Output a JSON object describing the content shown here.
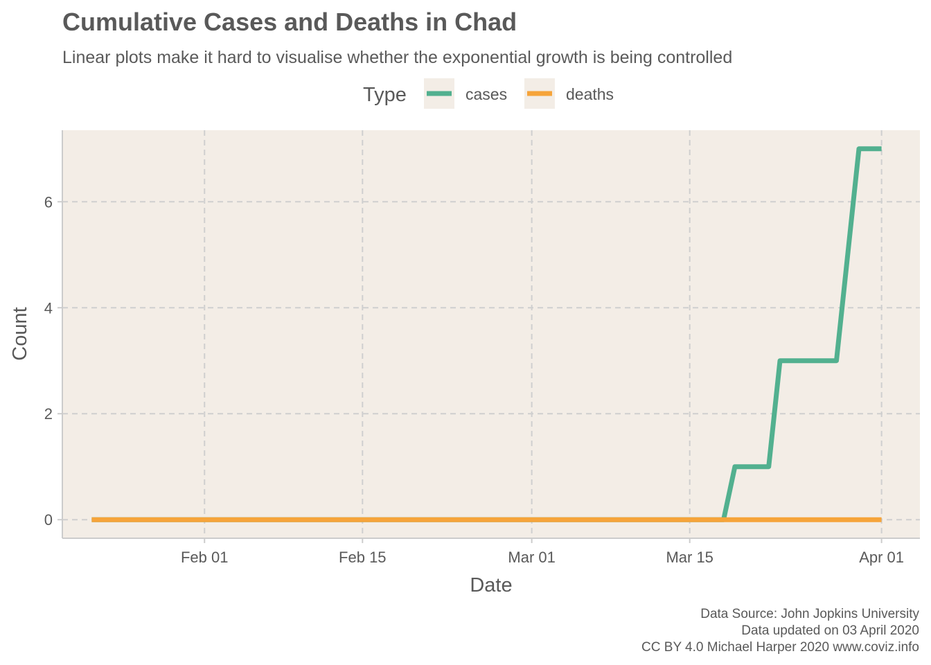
{
  "chart_data": {
    "type": "line",
    "title": "Cumulative Cases and Deaths in Chad",
    "subtitle": "Linear plots make it hard to visualise whether the exponential growth is being controlled",
    "xlabel": "Date",
    "ylabel": "Count",
    "legend": {
      "title": "Type",
      "position": "top-center",
      "entries": [
        "cases",
        "deaths"
      ]
    },
    "x_range": [
      "2020-01-22",
      "2020-04-03"
    ],
    "ylim": [
      -0.35,
      7.35
    ],
    "x_ticks": [
      {
        "date": "2020-02-01",
        "label": "Feb 01"
      },
      {
        "date": "2020-02-15",
        "label": "Feb 15"
      },
      {
        "date": "2020-03-01",
        "label": "Mar 01"
      },
      {
        "date": "2020-03-15",
        "label": "Mar 15"
      },
      {
        "date": "2020-04-01",
        "label": "Apr 01"
      }
    ],
    "y_ticks": [
      0,
      2,
      4,
      6
    ],
    "grid": true,
    "background": "#f3ede6",
    "series": [
      {
        "name": "cases",
        "color": "#52b08f",
        "points": [
          {
            "x": "2020-01-22",
            "y": 0
          },
          {
            "x": "2020-03-18",
            "y": 0
          },
          {
            "x": "2020-03-19",
            "y": 1
          },
          {
            "x": "2020-03-22",
            "y": 1
          },
          {
            "x": "2020-03-23",
            "y": 3
          },
          {
            "x": "2020-03-28",
            "y": 3
          },
          {
            "x": "2020-03-30",
            "y": 7
          },
          {
            "x": "2020-04-01",
            "y": 7
          }
        ]
      },
      {
        "name": "deaths",
        "color": "#f6a43a",
        "points": [
          {
            "x": "2020-01-22",
            "y": 0
          },
          {
            "x": "2020-04-01",
            "y": 0
          }
        ]
      }
    ],
    "caption": [
      "Data Source: John Jopkins University",
      "Data updated on 03 April 2020",
      "CC BY 4.0 Michael Harper 2020 www.coviz.info"
    ]
  }
}
